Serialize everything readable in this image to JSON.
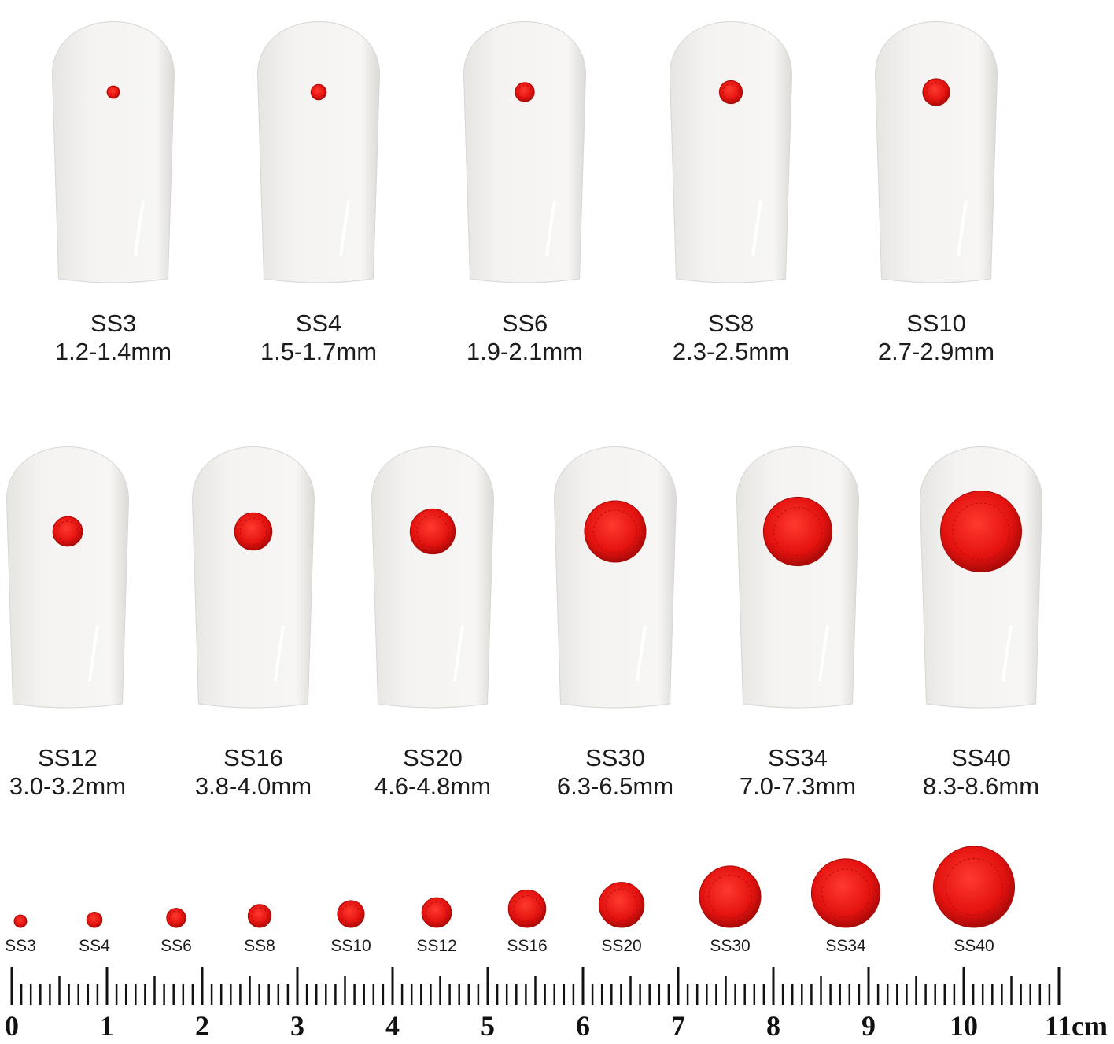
{
  "colors": {
    "nail": "#f4f3f1",
    "gem": "#e3120f",
    "gem_dark": "#a80a08",
    "text": "#1c1c1c"
  },
  "nail_rows": [
    [
      {
        "size": "SS3",
        "range": "1.2-1.4mm"
      },
      {
        "size": "SS4",
        "range": "1.5-1.7mm"
      },
      {
        "size": "SS6",
        "range": "1.9-2.1mm"
      },
      {
        "size": "SS8",
        "range": "2.3-2.5mm"
      },
      {
        "size": "SS10",
        "range": "2.7-2.9mm"
      }
    ],
    [
      {
        "size": "SS12",
        "range": "3.0-3.2mm"
      },
      {
        "size": "SS16",
        "range": "3.8-4.0mm"
      },
      {
        "size": "SS20",
        "range": "4.6-4.8mm"
      },
      {
        "size": "SS30",
        "range": "6.3-6.5mm"
      },
      {
        "size": "SS34",
        "range": "7.0-7.3mm"
      },
      {
        "size": "SS40",
        "range": "8.3-8.6mm"
      }
    ]
  ],
  "comparison_row": [
    "SS3",
    "SS4",
    "SS6",
    "SS8",
    "SS10",
    "SS12",
    "SS16",
    "SS20",
    "SS30",
    "SS34",
    "SS40"
  ],
  "ruler": {
    "labels": [
      "0",
      "1",
      "2",
      "3",
      "4",
      "5",
      "6",
      "7",
      "8",
      "9",
      "10",
      "11cm"
    ]
  }
}
